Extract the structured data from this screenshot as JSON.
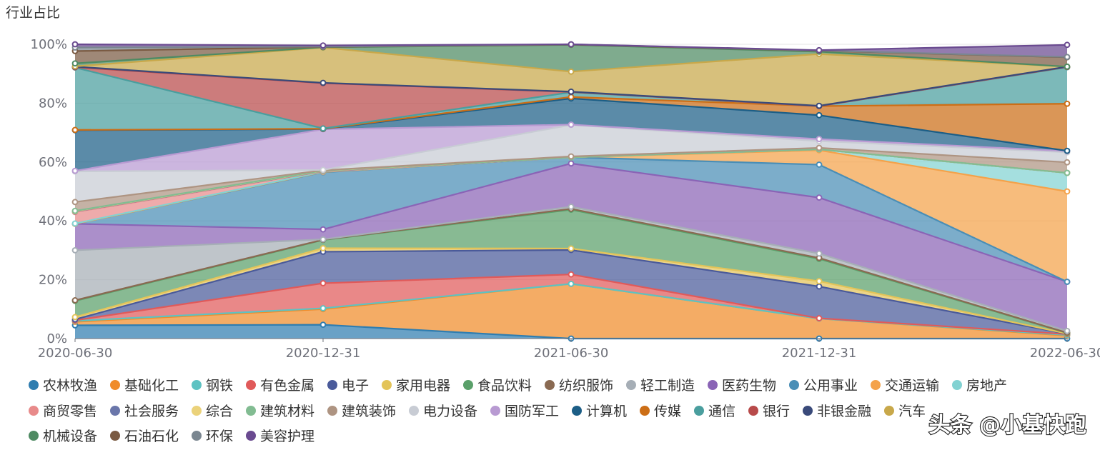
{
  "chart_data": {
    "type": "area",
    "stacked": true,
    "title": "",
    "ylabel": "行业占比",
    "xlabel": "",
    "ylim": [
      0,
      100
    ],
    "yticks": [
      "0%",
      "20%",
      "40%",
      "60%",
      "80%",
      "100%"
    ],
    "categories": [
      "2020-06-30",
      "2020-12-31",
      "2021-06-30",
      "2021-12-31",
      "2022-06-30"
    ],
    "series": [
      {
        "name": "农林牧渔",
        "color": "#2f7db0",
        "values": [
          4.5,
          4.7,
          0,
          0,
          0
        ]
      },
      {
        "name": "基础化工",
        "color": "#f08c2a",
        "values": [
          1.2,
          5.3,
          18.6,
          6.8,
          1.0
        ]
      },
      {
        "name": "钢铁",
        "color": "#5ec2c2",
        "values": [
          0.3,
          0.3,
          0,
          0,
          0.2
        ]
      },
      {
        "name": "有色金属",
        "color": "#e05a5a",
        "values": [
          0.2,
          8.5,
          3.2,
          0.1,
          0.3
        ]
      },
      {
        "name": "电子",
        "color": "#4a5a9a",
        "values": [
          0.3,
          10.7,
          8.3,
          10.8,
          0.1
        ]
      },
      {
        "name": "家用电器",
        "color": "#e3c459",
        "values": [
          0.8,
          1.2,
          0.5,
          1.8,
          0.1
        ]
      },
      {
        "name": "食品饮料",
        "color": "#5aa06a",
        "values": [
          5.5,
          2.8,
          13.2,
          7.6,
          0.2
        ]
      },
      {
        "name": "纺织服饰",
        "color": "#8a6a52",
        "values": [
          0.2,
          0.1,
          0.3,
          0.3,
          0.1
        ]
      },
      {
        "name": "轻工制造",
        "color": "#a6aeb6",
        "values": [
          17.0,
          0.1,
          0.7,
          1.5,
          0.6
        ]
      },
      {
        "name": "医药生物",
        "color": "#8a64b6",
        "values": [
          9.0,
          3.4,
          14.7,
          19.0,
          16.7
        ]
      },
      {
        "name": "公用事业",
        "color": "#4a8eb6",
        "values": [
          0,
          19.4,
          2.1,
          11.2,
          0
        ]
      },
      {
        "name": "交通运输",
        "color": "#f4a24a",
        "values": [
          0,
          0.1,
          0,
          4.9,
          30.7
        ]
      },
      {
        "name": "房地产",
        "color": "#82d2d2",
        "values": [
          0.1,
          0.1,
          0,
          0.3,
          6.3
        ]
      },
      {
        "name": "商贸零售",
        "color": "#e88a8a",
        "values": [
          3.9,
          0.1,
          0,
          0,
          0
        ]
      },
      {
        "name": "社会服务",
        "color": "#6a76aa",
        "values": [
          0.2,
          0.1,
          0,
          0,
          0
        ]
      },
      {
        "name": "综合",
        "color": "#ebd27a",
        "values": [
          0.1,
          0.1,
          0,
          0,
          0
        ]
      },
      {
        "name": "建筑材料",
        "color": "#82bc92",
        "values": [
          0.1,
          0.1,
          0,
          0,
          0
        ]
      },
      {
        "name": "建筑装饰",
        "color": "#ae9482",
        "values": [
          3.0,
          0.1,
          0.3,
          0.5,
          3.6
        ]
      },
      {
        "name": "电力设备",
        "color": "#c8ccd4",
        "values": [
          10.4,
          0.1,
          10.7,
          2.3,
          3.4
        ]
      },
      {
        "name": "国防军工",
        "color": "#b89ad2",
        "values": [
          0.2,
          13.8,
          0.1,
          0.7,
          0.4
        ]
      },
      {
        "name": "计算机",
        "color": "#1c5e86",
        "values": [
          13.8,
          0.1,
          8.9,
          8.1,
          0.1
        ]
      },
      {
        "name": "传媒",
        "color": "#cc6e16",
        "values": [
          0.1,
          0.1,
          0.5,
          3.1,
          16.0
        ]
      },
      {
        "name": "通信",
        "color": "#4a9e9e",
        "values": [
          21.2,
          0.1,
          1.6,
          0,
          12.4
        ]
      },
      {
        "name": "银行",
        "color": "#b84a4a",
        "values": [
          0.1,
          15.4,
          0.1,
          0,
          0.1
        ]
      },
      {
        "name": "非银金融",
        "color": "#3a4a7a",
        "values": [
          0.2,
          0.1,
          0.1,
          0.1,
          0.1
        ]
      },
      {
        "name": "汽车",
        "color": "#c8a84a",
        "values": [
          0.1,
          12.0,
          6.8,
          17.6,
          0
        ]
      },
      {
        "name": "机械设备",
        "color": "#4e8a62",
        "values": [
          1.0,
          0.1,
          9.1,
          0.8,
          0
        ]
      },
      {
        "name": "石油石化",
        "color": "#7a5a42",
        "values": [
          4.2,
          0.1,
          0.1,
          0.3,
          3.2
        ]
      },
      {
        "name": "环保",
        "color": "#7a8690",
        "values": [
          1.2,
          0.1,
          0.1,
          0.1,
          0.1
        ]
      },
      {
        "name": "美容护理",
        "color": "#6a4a90",
        "values": [
          1.1,
          0.4,
          0.1,
          0.1,
          4.1
        ]
      }
    ]
  },
  "watermark": "头条 @小基快跑"
}
